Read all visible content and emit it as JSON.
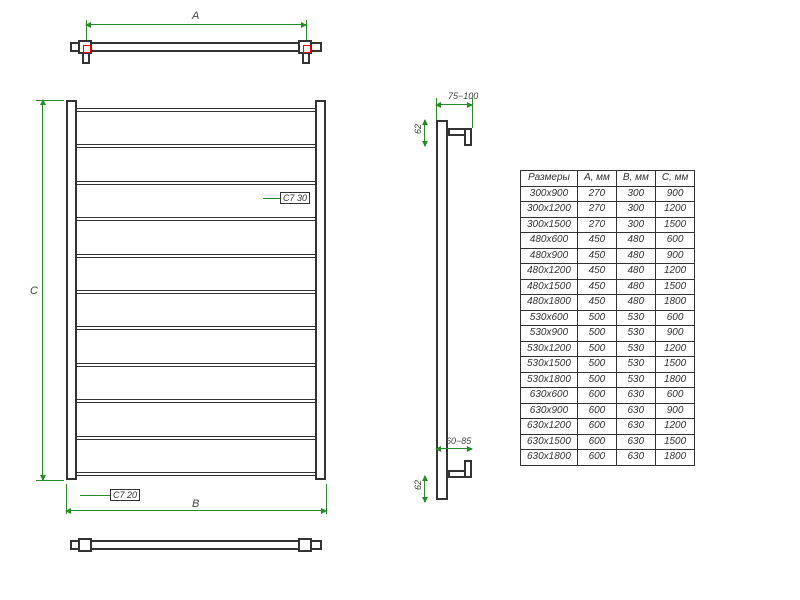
{
  "labels": {
    "A": "A",
    "B": "B",
    "C": "C",
    "depth_top": "75−100",
    "depth_bot": "60−85",
    "bracket_h_top": "62",
    "bracket_h_bot": "62",
    "rung_gap_top": "C7 30",
    "rung_gap_bot": "C7 20"
  },
  "colors": {
    "dim": "#2a8a2a",
    "line": "#333333",
    "accent": "#cc2222"
  },
  "front_view": {
    "rungs": 11
  },
  "table": {
    "headers": [
      "Размеры",
      "A, мм",
      "B, мм",
      "C, мм"
    ],
    "rows": [
      [
        "300x900",
        "270",
        "300",
        "900"
      ],
      [
        "300x1200",
        "270",
        "300",
        "1200"
      ],
      [
        "300x1500",
        "270",
        "300",
        "1500"
      ],
      [
        "480x600",
        "450",
        "480",
        "600"
      ],
      [
        "480x900",
        "450",
        "480",
        "900"
      ],
      [
        "480x1200",
        "450",
        "480",
        "1200"
      ],
      [
        "480x1500",
        "450",
        "480",
        "1500"
      ],
      [
        "480x1800",
        "450",
        "480",
        "1800"
      ],
      [
        "530x600",
        "500",
        "530",
        "600"
      ],
      [
        "530x900",
        "500",
        "530",
        "900"
      ],
      [
        "530x1200",
        "500",
        "530",
        "1200"
      ],
      [
        "530x1500",
        "500",
        "530",
        "1500"
      ],
      [
        "530x1800",
        "500",
        "530",
        "1800"
      ],
      [
        "630x600",
        "600",
        "630",
        "600"
      ],
      [
        "630x900",
        "600",
        "630",
        "900"
      ],
      [
        "630x1200",
        "600",
        "630",
        "1200"
      ],
      [
        "630x1500",
        "600",
        "630",
        "1500"
      ],
      [
        "630x1800",
        "600",
        "630",
        "1800"
      ]
    ]
  }
}
